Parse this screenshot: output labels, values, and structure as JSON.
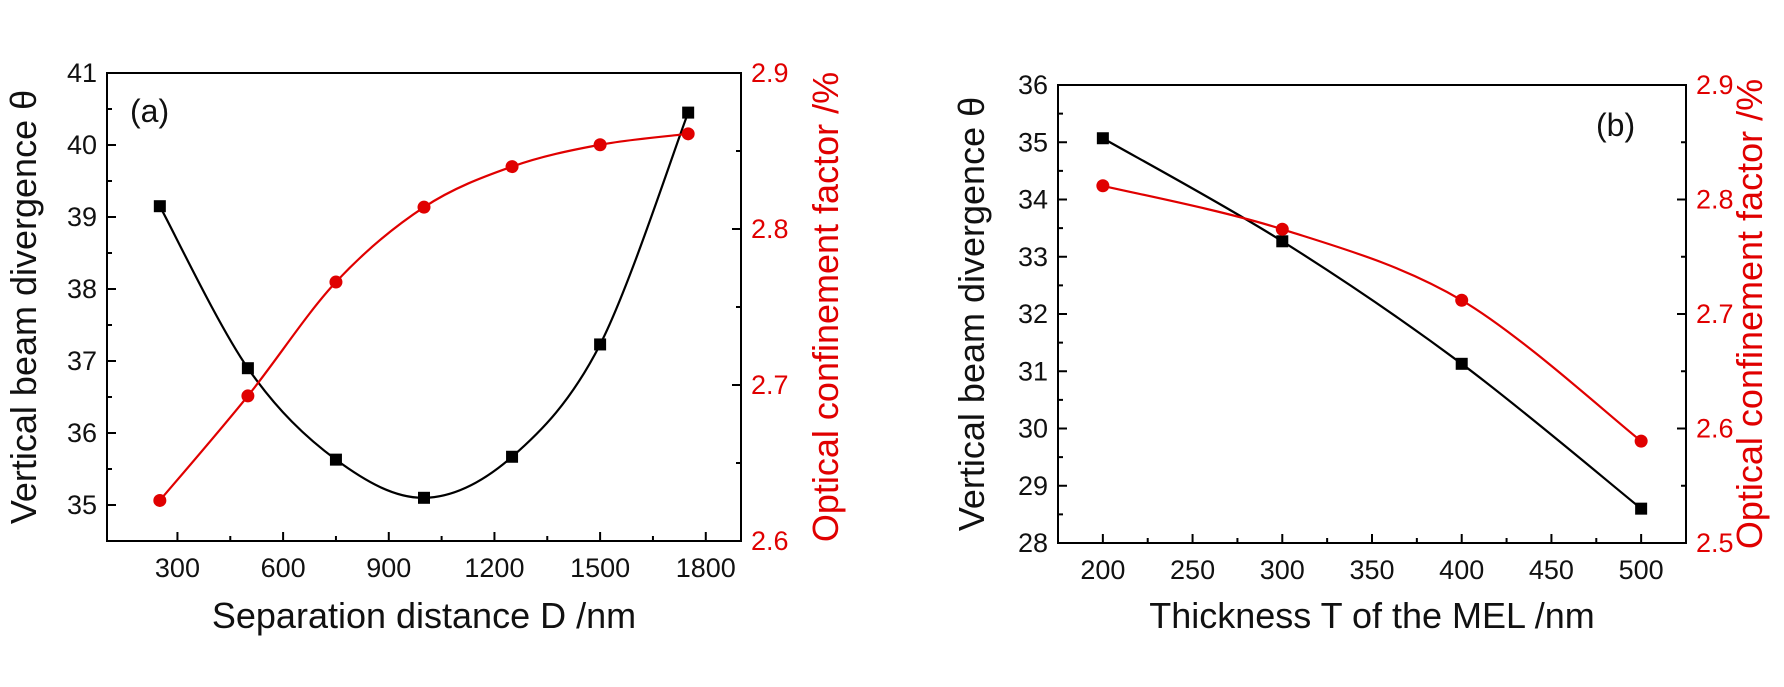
{
  "colors": {
    "series_left": "#000000",
    "series_right": "#e00000",
    "axis": "#000000",
    "right_axis_text": "#e00000"
  },
  "chart_data": [
    {
      "type": "line",
      "panel_label": "(a)",
      "xlabel": "Separation distance D /nm",
      "ylabel": "Vertical beam divergence θ",
      "y2label": "Optical confinement factor /%",
      "xlim": [
        100,
        1900
      ],
      "ylim": [
        34.5,
        41
      ],
      "y2lim": [
        2.6,
        2.9
      ],
      "xticks": [
        300,
        600,
        900,
        1200,
        1500,
        1800
      ],
      "yticks": [
        35,
        36,
        37,
        38,
        39,
        40,
        41
      ],
      "y2ticks": [
        2.6,
        2.7,
        2.8,
        2.9
      ],
      "grid": false,
      "series": [
        {
          "axis": "left",
          "marker": "square",
          "color": "#000000",
          "x": [
            250,
            500,
            750,
            1000,
            1250,
            1500,
            1750
          ],
          "values": [
            39.15,
            36.9,
            35.63,
            35.1,
            35.67,
            37.23,
            40.45
          ]
        },
        {
          "axis": "right",
          "marker": "circle",
          "color": "#e00000",
          "x": [
            250,
            500,
            750,
            1000,
            1250,
            1500,
            1750
          ],
          "values": [
            2.626,
            2.693,
            2.766,
            2.814,
            2.84,
            2.854,
            2.861
          ]
        }
      ]
    },
    {
      "type": "line",
      "panel_label": "(b)",
      "xlabel": "Thickness T of the MEL /nm",
      "ylabel": "Vertical beam divergence θ",
      "y2label": "Optical confinement factor /%",
      "xlim": [
        175,
        525
      ],
      "ylim": [
        28,
        36
      ],
      "y2lim": [
        2.5,
        2.9
      ],
      "xticks": [
        200,
        250,
        300,
        350,
        400,
        450,
        500
      ],
      "yticks": [
        28,
        29,
        30,
        31,
        32,
        33,
        34,
        35,
        36
      ],
      "y2ticks": [
        2.5,
        2.6,
        2.7,
        2.8,
        2.9
      ],
      "grid": false,
      "series": [
        {
          "axis": "left",
          "marker": "square",
          "color": "#000000",
          "x": [
            200,
            300,
            400,
            500
          ],
          "values": [
            35.07,
            33.27,
            31.13,
            28.6
          ]
        },
        {
          "axis": "right",
          "marker": "circle",
          "color": "#e00000",
          "x": [
            200,
            300,
            400,
            500
          ],
          "values": [
            2.812,
            2.774,
            2.712,
            2.589
          ]
        }
      ]
    }
  ]
}
